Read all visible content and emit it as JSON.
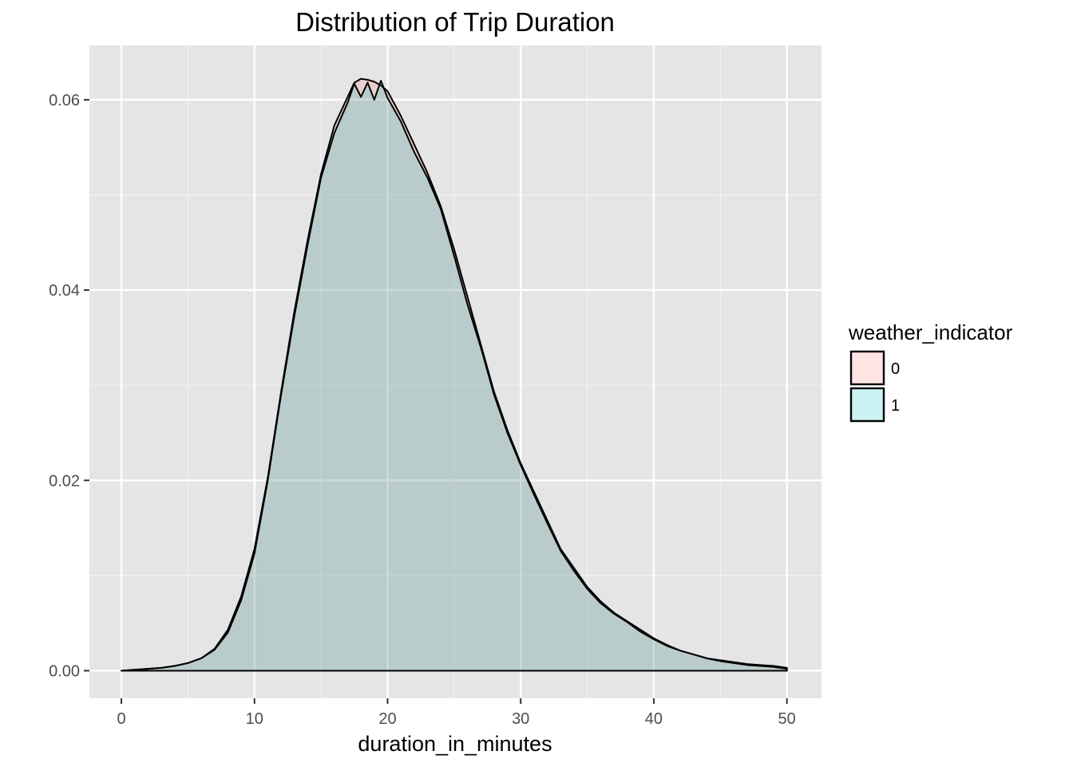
{
  "chart_data": {
    "type": "area",
    "title": "Distribution of Trip Duration",
    "xlabel": "duration_in_minutes",
    "ylabel": "",
    "xlim": [
      -2.4,
      52.6
    ],
    "ylim": [
      -0.0029,
      0.0657
    ],
    "x_ticks": [
      0,
      10,
      20,
      30,
      40,
      50
    ],
    "x_tick_labels": [
      "0",
      "10",
      "20",
      "30",
      "40",
      "50"
    ],
    "y_ticks": [
      0,
      0.02,
      0.04,
      0.06
    ],
    "y_tick_labels": [
      "0.00",
      "0.02",
      "0.04",
      "0.06"
    ],
    "grid": true,
    "legend": {
      "title": "weather_indicator",
      "position": "right",
      "entries": [
        {
          "label": "0",
          "color": "#f8766d"
        },
        {
          "label": "1",
          "color": "#00bfc4"
        }
      ]
    },
    "x": [
      0,
      1,
      2,
      3,
      4,
      5,
      6,
      7,
      8,
      9,
      10,
      11,
      12,
      13,
      14,
      15,
      16,
      17,
      17.5,
      18,
      18.5,
      19,
      19.5,
      20,
      21,
      22,
      23,
      24,
      25,
      26,
      27,
      28,
      29,
      30,
      31,
      32,
      33,
      34,
      35,
      36,
      37,
      38,
      39,
      40,
      41,
      42,
      43,
      44,
      45,
      46,
      47,
      48,
      49,
      50
    ],
    "series": [
      {
        "name": "0",
        "values": [
          0,
          0.0001,
          0.0002,
          0.0003,
          0.0005,
          0.0008,
          0.0013,
          0.0023,
          0.0043,
          0.0078,
          0.0128,
          0.0203,
          0.0293,
          0.0378,
          0.0453,
          0.0522,
          0.0573,
          0.0603,
          0.0618,
          0.0622,
          0.0621,
          0.0619,
          0.0615,
          0.0609,
          0.0583,
          0.0553,
          0.0523,
          0.0488,
          0.0443,
          0.0393,
          0.0343,
          0.0293,
          0.0253,
          0.0218,
          0.0188,
          0.0158,
          0.0128,
          0.0108,
          0.0088,
          0.0073,
          0.0061,
          0.0052,
          0.0043,
          0.0034,
          0.0027,
          0.0021,
          0.0017,
          0.0013,
          0.0011,
          0.0009,
          0.0007,
          0.0006,
          0.0005,
          0.0003
        ]
      },
      {
        "name": "1",
        "values": [
          0,
          0.0001,
          0.0002,
          0.0003,
          0.0005,
          0.0008,
          0.0013,
          0.0022,
          0.004,
          0.0074,
          0.0123,
          0.02,
          0.029,
          0.0373,
          0.0448,
          0.0518,
          0.0565,
          0.0597,
          0.0617,
          0.0603,
          0.0618,
          0.06,
          0.062,
          0.0602,
          0.0577,
          0.0545,
          0.0518,
          0.0485,
          0.0436,
          0.0385,
          0.034,
          0.029,
          0.025,
          0.0216,
          0.0185,
          0.0155,
          0.0126,
          0.0105,
          0.0086,
          0.0071,
          0.006,
          0.0051,
          0.0041,
          0.0033,
          0.0026,
          0.0021,
          0.0017,
          0.0013,
          0.001,
          0.0008,
          0.0006,
          0.0005,
          0.0004,
          0.0002
        ]
      }
    ]
  }
}
